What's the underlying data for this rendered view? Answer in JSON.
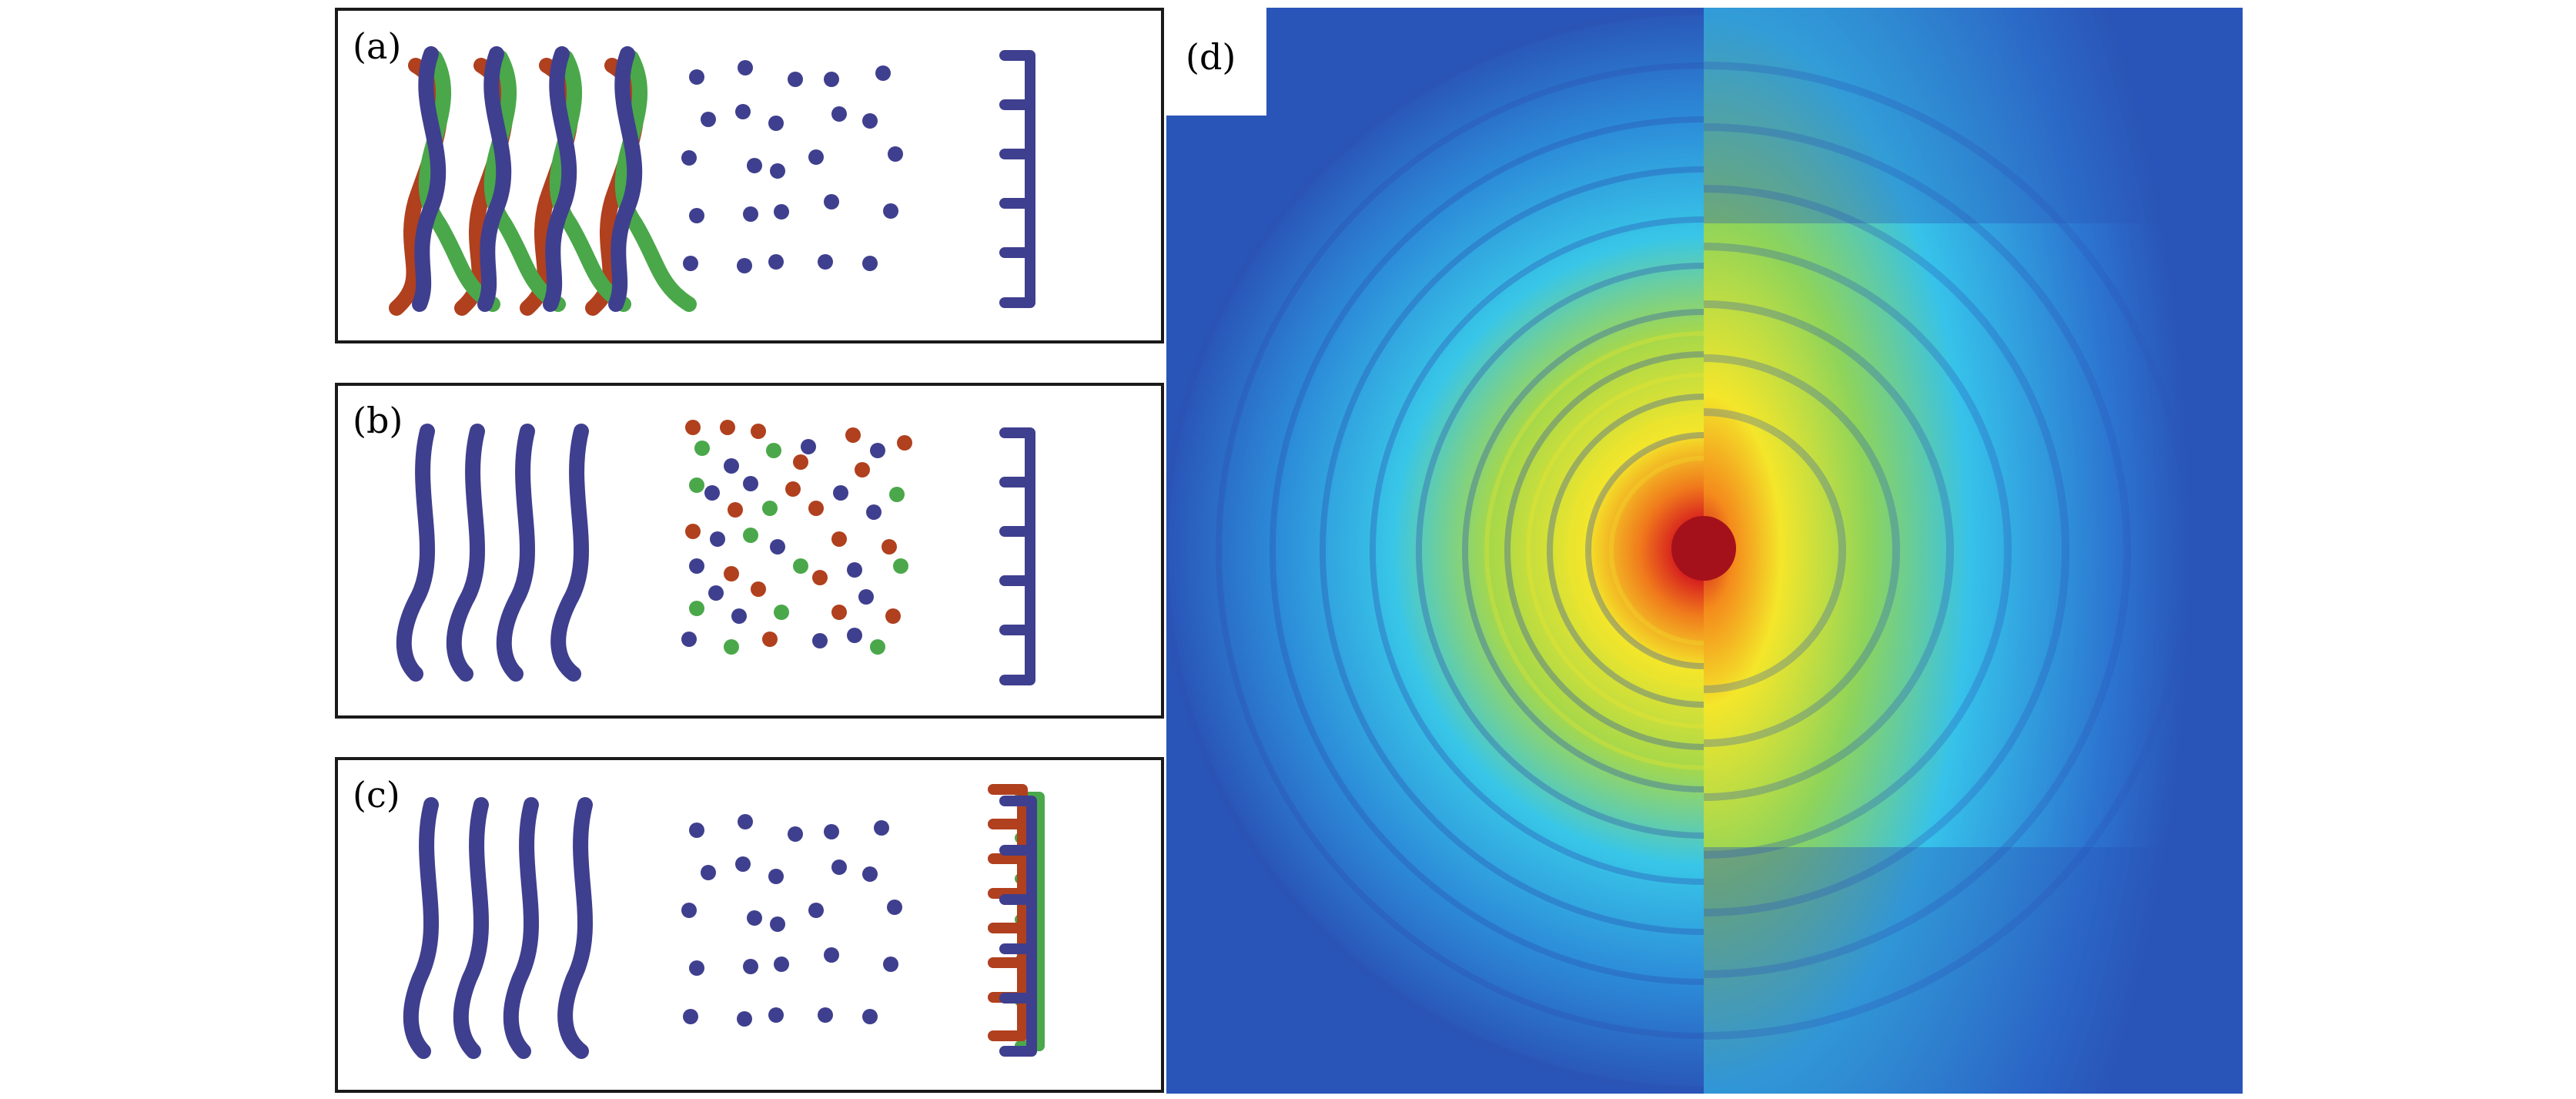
{
  "panels": [
    {
      "id": "a",
      "label": "(a)",
      "description_key": "coherent-multiwave-ordered-scatterers-single-grating"
    },
    {
      "id": "b",
      "label": "(b)",
      "description_key": "single-wave-disordered-multicolor-scatterers-single-grating"
    },
    {
      "id": "c",
      "label": "(c)",
      "description_key": "single-wave-ordered-scatterers-multicolor-gratings"
    },
    {
      "id": "d",
      "label": "(d)",
      "description_key": "speckle-intensity-map"
    }
  ],
  "colors": {
    "blue": "#3f3f8f",
    "red": "#b0401e",
    "green": "#4aa84a",
    "frame": "#1a1a1a",
    "heatmap_low": "#2a4fb0",
    "heatmap_mid": "#28c0ee",
    "heatmap_high": "#f2e623",
    "heatmap_peak": "#c4141e"
  }
}
